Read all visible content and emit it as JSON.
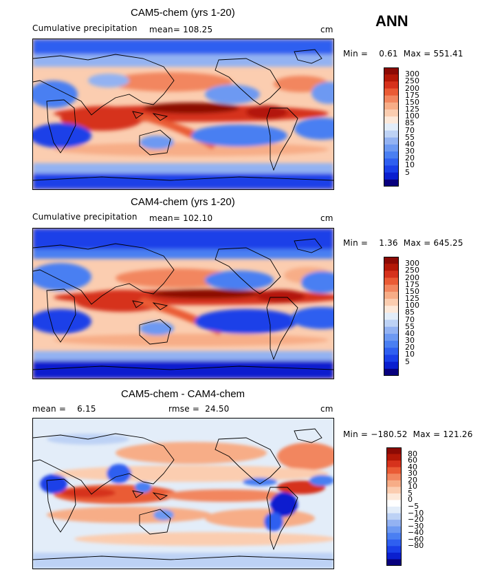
{
  "season": "ANN",
  "palettes": {
    "precip": [
      "#08007e",
      "#0a1fcf",
      "#1a3fe8",
      "#2f5ff0",
      "#4a7ff2",
      "#6d99f2",
      "#93b2f2",
      "#bdd2f5",
      "#e3edf9",
      "#fde9da",
      "#fbcdb0",
      "#f7ad87",
      "#f2865f",
      "#ea5b35",
      "#d6321c",
      "#b31807",
      "#8c0a04"
    ],
    "diff": [
      "#08007e",
      "#0a1fcf",
      "#1a3fe8",
      "#2f5ff0",
      "#4a7ff2",
      "#6d99f2",
      "#93b2f2",
      "#bdd2f5",
      "#e3edf9",
      "#ffffff",
      "#fde9da",
      "#fbcdb0",
      "#f7ad87",
      "#f2865f",
      "#ea5b35",
      "#d6321c",
      "#b31807",
      "#8c0a04"
    ]
  },
  "chart_data": [
    {
      "type": "heatmap",
      "panel_id": "cam5",
      "title": "CAM5-chem (yrs 1-20)",
      "subtitle": "Cumulative precipitation",
      "mean_label": "mean=",
      "mean_value": "108.25",
      "units": "cm",
      "min_label": "Min =",
      "min_value": "0.61",
      "max_label": "Max =",
      "max_value": "551.41",
      "levels": [
        "300",
        "250",
        "200",
        "175",
        "150",
        "125",
        "100",
        "85",
        "70",
        "55",
        "40",
        "30",
        "20",
        "10",
        "5"
      ],
      "palette": "precip"
    },
    {
      "type": "heatmap",
      "panel_id": "cam4",
      "title": "CAM4-chem (yrs 1-20)",
      "subtitle": "Cumulative precipitation",
      "mean_label": "mean=",
      "mean_value": "102.10",
      "units": "cm",
      "min_label": "Min =",
      "min_value": "1.36",
      "max_label": "Max =",
      "max_value": "645.25",
      "levels": [
        "300",
        "250",
        "200",
        "175",
        "150",
        "125",
        "100",
        "85",
        "70",
        "55",
        "40",
        "30",
        "20",
        "10",
        "5"
      ],
      "palette": "precip"
    },
    {
      "type": "heatmap",
      "panel_id": "diff",
      "title": "CAM5-chem - CAM4-chem",
      "mean_label": "mean =",
      "mean_value": "6.15",
      "rmse_label": "rmse =",
      "rmse_value": "24.50",
      "units": "cm",
      "min_label": "Min =",
      "min_value": "−180.52",
      "max_label": "Max =",
      "max_value": "121.26",
      "levels": [
        "80",
        "60",
        "40",
        "30",
        "20",
        "10",
        "5",
        "0",
        "−5",
        "−10",
        "−20",
        "−30",
        "−40",
        "−60",
        "−80"
      ],
      "palette": "diff"
    }
  ]
}
